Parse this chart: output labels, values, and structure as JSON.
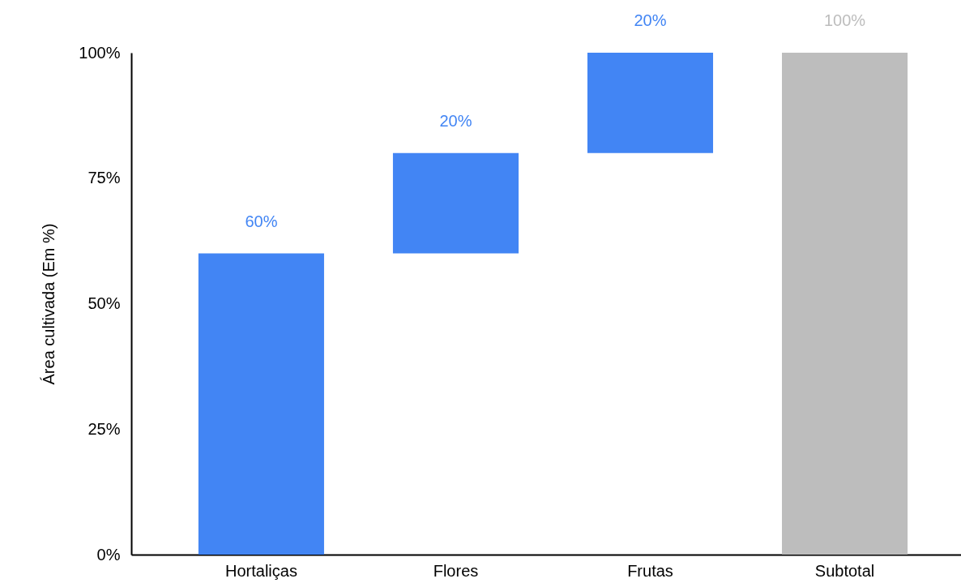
{
  "chart_data": {
    "type": "bar",
    "categories": [
      "Hortaliças",
      "Flores",
      "Frutas",
      "Subtotal"
    ],
    "values": [
      60,
      20,
      20,
      100
    ],
    "base": [
      0,
      60,
      80,
      0
    ],
    "colors": [
      "#4285f4",
      "#4285f4",
      "#4285f4",
      "#bdbdbd"
    ],
    "value_labels": [
      "60%",
      "20%",
      "20%",
      "100%"
    ],
    "ylabel": "Área cultivada (Em %)",
    "ylim": [
      0,
      100
    ],
    "yticks": [
      {
        "value": 0,
        "label": "0%"
      },
      {
        "value": 25,
        "label": "25%"
      },
      {
        "value": 50,
        "label": "50%"
      },
      {
        "value": 75,
        "label": "75%"
      },
      {
        "value": 100,
        "label": "100%"
      }
    ]
  }
}
